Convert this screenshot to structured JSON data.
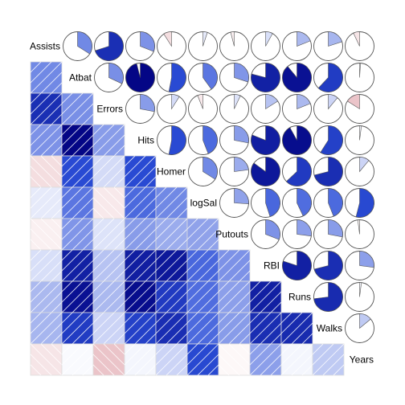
{
  "chart_data": {
    "type": "heatmap",
    "variables": [
      "Assists",
      "Atbat",
      "Errors",
      "Hits",
      "Homer",
      "logSal",
      "Putouts",
      "RBI",
      "Runs",
      "Walks",
      "Years"
    ],
    "lower_panel": "shade",
    "upper_panel": "pie",
    "diagonal": "variable names",
    "correlations": [
      [
        null,
        0.34,
        0.7,
        0.31,
        -0.09,
        0.05,
        -0.04,
        0.08,
        0.19,
        0.2,
        -0.07
      ],
      [
        0.34,
        null,
        0.32,
        0.96,
        0.53,
        0.4,
        0.3,
        0.79,
        0.89,
        0.62,
        0.01
      ],
      [
        0.7,
        0.32,
        null,
        0.28,
        0.09,
        -0.06,
        0.07,
        0.16,
        0.19,
        0.11,
        -0.16
      ],
      [
        0.31,
        0.96,
        0.28,
        null,
        0.53,
        0.44,
        0.28,
        0.81,
        0.92,
        0.59,
        0.02
      ],
      [
        -0.09,
        0.53,
        0.09,
        0.53,
        null,
        0.34,
        0.23,
        0.85,
        0.63,
        0.71,
        0.11
      ],
      [
        0.05,
        0.4,
        -0.06,
        0.44,
        0.34,
        null,
        0.26,
        0.45,
        0.43,
        0.44,
        0.54
      ],
      [
        -0.04,
        0.3,
        0.07,
        0.28,
        0.23,
        0.26,
        null,
        0.31,
        0.27,
        0.28,
        -0.02
      ],
      [
        0.08,
        0.79,
        0.16,
        0.81,
        0.85,
        0.45,
        0.31,
        null,
        0.8,
        0.71,
        0.27
      ],
      [
        0.19,
        0.89,
        0.19,
        0.92,
        0.63,
        0.43,
        0.27,
        0.8,
        null,
        0.73,
        0.02
      ],
      [
        0.2,
        0.62,
        0.11,
        0.59,
        0.71,
        0.44,
        0.28,
        0.71,
        0.73,
        null,
        0.14
      ],
      [
        -0.07,
        0.01,
        -0.16,
        0.02,
        0.11,
        0.54,
        -0.02,
        0.27,
        0.02,
        0.14,
        null
      ]
    ],
    "colors": {
      "negative_strong": "#b2182b",
      "neutral": "#ffffff",
      "positive_strong": "#00007f",
      "positive_mid": "#2c4fd8",
      "panel_border": "#dcdcdc",
      "hatch": "#ffffff",
      "pie_outline": "#555555"
    }
  }
}
